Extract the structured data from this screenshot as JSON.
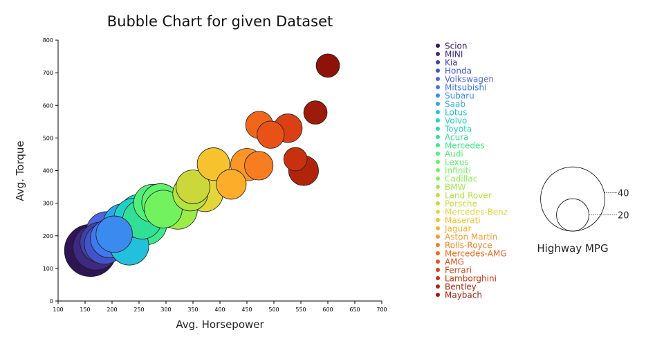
{
  "chart_data": {
    "type": "scatter",
    "title": "Bubble Chart for given Dataset",
    "xlabel": "Avg. Horsepower",
    "ylabel": "Avg. Torque",
    "xlim": [
      100,
      700
    ],
    "ylim": [
      0,
      800
    ],
    "xticks": [
      100,
      150,
      200,
      250,
      300,
      350,
      400,
      450,
      500,
      550,
      600,
      650,
      700
    ],
    "yticks": [
      0,
      100,
      200,
      300,
      400,
      500,
      600,
      700,
      800
    ],
    "grid": false,
    "legend_position": "right",
    "size_legend": {
      "title": "Highway MPG",
      "values": [
        40,
        20
      ]
    },
    "series": [
      {
        "name": "Scion",
        "x": 160,
        "y": 155,
        "size": 40,
        "color": "#2f1553"
      },
      {
        "name": "MINI",
        "x": 170,
        "y": 165,
        "size": 35,
        "color": "#3d2a80"
      },
      {
        "name": "Kia",
        "x": 178,
        "y": 180,
        "size": 31,
        "color": "#4040a8"
      },
      {
        "name": "Honda",
        "x": 186,
        "y": 175,
        "size": 31,
        "color": "#4453c8"
      },
      {
        "name": "Volkswagen",
        "x": 190,
        "y": 210,
        "size": 32,
        "color": "#4a66e0"
      },
      {
        "name": "Mitsubishi",
        "x": 196,
        "y": 192,
        "size": 30,
        "color": "#3f78ef"
      },
      {
        "name": "Subaru",
        "x": 204,
        "y": 205,
        "size": 28,
        "color": "#3a8aef"
      },
      {
        "name": "Saab",
        "x": 220,
        "y": 238,
        "size": 30,
        "color": "#29a8ea"
      },
      {
        "name": "Lotus",
        "x": 232,
        "y": 170,
        "size": 30,
        "color": "#22c0dd"
      },
      {
        "name": "Volvo",
        "x": 240,
        "y": 255,
        "size": 30,
        "color": "#1fd0c8"
      },
      {
        "name": "Toyota",
        "x": 250,
        "y": 265,
        "size": 31,
        "color": "#25d8b0"
      },
      {
        "name": "Acura",
        "x": 256,
        "y": 250,
        "size": 30,
        "color": "#30e096"
      },
      {
        "name": "Mercedes",
        "x": 262,
        "y": 238,
        "size": 33,
        "color": "#3bea88"
      },
      {
        "name": "Audi",
        "x": 275,
        "y": 300,
        "size": 29,
        "color": "#50f07a"
      },
      {
        "name": "Lexus",
        "x": 290,
        "y": 302,
        "size": 29,
        "color": "#60f26c"
      },
      {
        "name": "Infiniti",
        "x": 295,
        "y": 282,
        "size": 29,
        "color": "#72f25e"
      },
      {
        "name": "Cadillac",
        "x": 305,
        "y": 285,
        "size": 30,
        "color": "#88f050"
      },
      {
        "name": "BMW",
        "x": 322,
        "y": 280,
        "size": 30,
        "color": "#9cec48"
      },
      {
        "name": "Land Rover",
        "x": 345,
        "y": 330,
        "size": 27,
        "color": "#b4e33c"
      },
      {
        "name": "Porsche",
        "x": 350,
        "y": 350,
        "size": 26,
        "color": "#ccd83a"
      },
      {
        "name": "Mercedes-Benz",
        "x": 372,
        "y": 330,
        "size": 28,
        "color": "#e2d63a"
      },
      {
        "name": "Maserati",
        "x": 388,
        "y": 420,
        "size": 25,
        "color": "#f6c22e"
      },
      {
        "name": "Jaguar",
        "x": 421,
        "y": 358,
        "size": 23,
        "color": "#fcad2a"
      },
      {
        "name": "Aston Martin",
        "x": 450,
        "y": 418,
        "size": 25,
        "color": "#fb9526"
      },
      {
        "name": "Rolls-Royce",
        "x": 472,
        "y": 415,
        "size": 22,
        "color": "#f77d20"
      },
      {
        "name": "Mercedes-AMG",
        "x": 473,
        "y": 540,
        "size": 21,
        "color": "#f0661a"
      },
      {
        "name": "AMG",
        "x": 494,
        "y": 510,
        "size": 21,
        "color": "#e85216"
      },
      {
        "name": "Ferrari",
        "x": 526,
        "y": 530,
        "size": 22,
        "color": "#d94114"
      },
      {
        "name": "Lamborghini",
        "x": 540,
        "y": 435,
        "size": 18,
        "color": "#c8310f"
      },
      {
        "name": "Bentley",
        "x": 555,
        "y": 400,
        "size": 23,
        "color": "#b1240b"
      },
      {
        "name": "Maybach",
        "x": 577,
        "y": 578,
        "size": 18,
        "color": "#9e1a09"
      },
      {
        "name": "",
        "x": 600,
        "y": 722,
        "size": 18,
        "color": "#8e1208"
      }
    ]
  }
}
